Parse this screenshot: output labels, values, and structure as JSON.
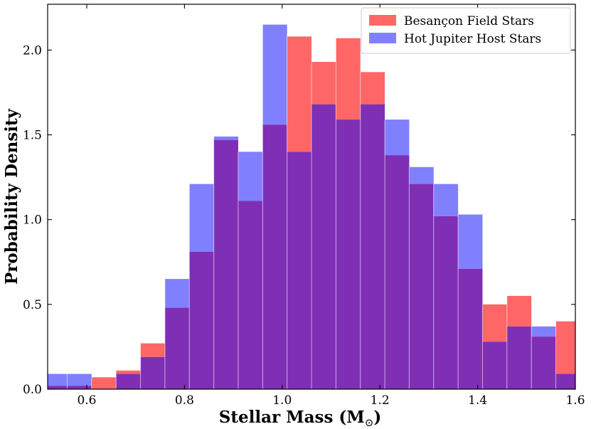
{
  "chart_data": {
    "type": "bar",
    "title": "",
    "xlabel": "Stellar Mass (M",
    "xlabel_subscript": "⊙",
    "xlabel_close": ")",
    "ylabel": "Probability Density",
    "xlim": [
      0.52,
      1.6
    ],
    "ylim": [
      0,
      2.27
    ],
    "xticks": [
      0.6,
      0.8,
      1.0,
      1.2,
      1.4,
      1.6
    ],
    "xtick_labels": [
      "0.6",
      "0.8",
      "1.0",
      "1.2",
      "1.4",
      "1.6"
    ],
    "yticks": [
      0.0,
      0.5,
      1.0,
      1.5,
      2.0
    ],
    "ytick_labels": [
      "0.0",
      "0.5",
      "1.0",
      "1.5",
      "2.0"
    ],
    "bin_edges": [
      0.52,
      0.56,
      0.61,
      0.66,
      0.71,
      0.76,
      0.81,
      0.86,
      0.91,
      0.96,
      1.01,
      1.06,
      1.11,
      1.16,
      1.21,
      1.26,
      1.31,
      1.36,
      1.41,
      1.46,
      1.51,
      1.56,
      1.6
    ],
    "legend_position": "top-right",
    "series": [
      {
        "name": "Besançon Field Stars",
        "color": "#ff6666",
        "values": [
          0.02,
          0.02,
          0.07,
          0.11,
          0.27,
          0.48,
          0.81,
          1.47,
          1.11,
          1.56,
          2.08,
          1.93,
          2.07,
          1.87,
          1.38,
          1.21,
          1.02,
          0.71,
          0.5,
          0.55,
          0.31,
          0.4
        ]
      },
      {
        "name": "Hot Jupiter Host Stars",
        "color": "#8080ff",
        "values": [
          0.09,
          0.09,
          0.0,
          0.09,
          0.19,
          0.65,
          1.21,
          1.49,
          1.4,
          2.15,
          1.4,
          1.68,
          1.59,
          1.68,
          1.59,
          1.31,
          1.21,
          1.03,
          0.28,
          0.37,
          0.37,
          0.09
        ]
      }
    ],
    "overlap_color": "#7f2fb5"
  }
}
